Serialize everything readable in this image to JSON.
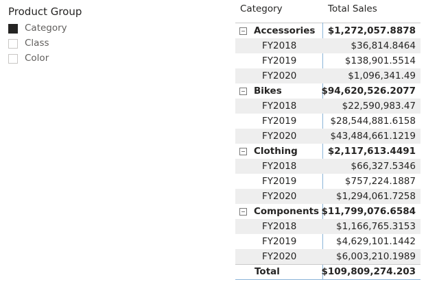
{
  "slicer": {
    "title": "Product Group",
    "items": [
      {
        "label": "Category",
        "checked": true
      },
      {
        "label": "Class",
        "checked": false
      },
      {
        "label": "Color",
        "checked": false
      }
    ]
  },
  "matrix": {
    "headers": [
      "Category",
      "Total Sales"
    ],
    "groups": [
      {
        "name": "Accessories",
        "total": "$1,272,057.8878",
        "rows": [
          {
            "label": "FY2018",
            "value": "$36,814.8464"
          },
          {
            "label": "FY2019",
            "value": "$138,901.5514"
          },
          {
            "label": "FY2020",
            "value": "$1,096,341.49"
          }
        ]
      },
      {
        "name": "Bikes",
        "total": "$94,620,526.2077",
        "rows": [
          {
            "label": "FY2018",
            "value": "$22,590,983.47"
          },
          {
            "label": "FY2019",
            "value": "$28,544,881.6158"
          },
          {
            "label": "FY2020",
            "value": "$43,484,661.1219"
          }
        ]
      },
      {
        "name": "Clothing",
        "total": "$2,117,613.4491",
        "rows": [
          {
            "label": "FY2018",
            "value": "$66,327.5346"
          },
          {
            "label": "FY2019",
            "value": "$757,224.1887"
          },
          {
            "label": "FY2020",
            "value": "$1,294,061.7258"
          }
        ]
      },
      {
        "name": "Components",
        "total": "$11,799,076.6584",
        "rows": [
          {
            "label": "FY2018",
            "value": "$1,166,765.3153"
          },
          {
            "label": "FY2019",
            "value": "$4,629,101.1442"
          },
          {
            "label": "FY2020",
            "value": "$6,003,210.1989"
          }
        ]
      }
    ],
    "total": {
      "label": "Total",
      "value": "$109,809,274.203"
    }
  }
}
